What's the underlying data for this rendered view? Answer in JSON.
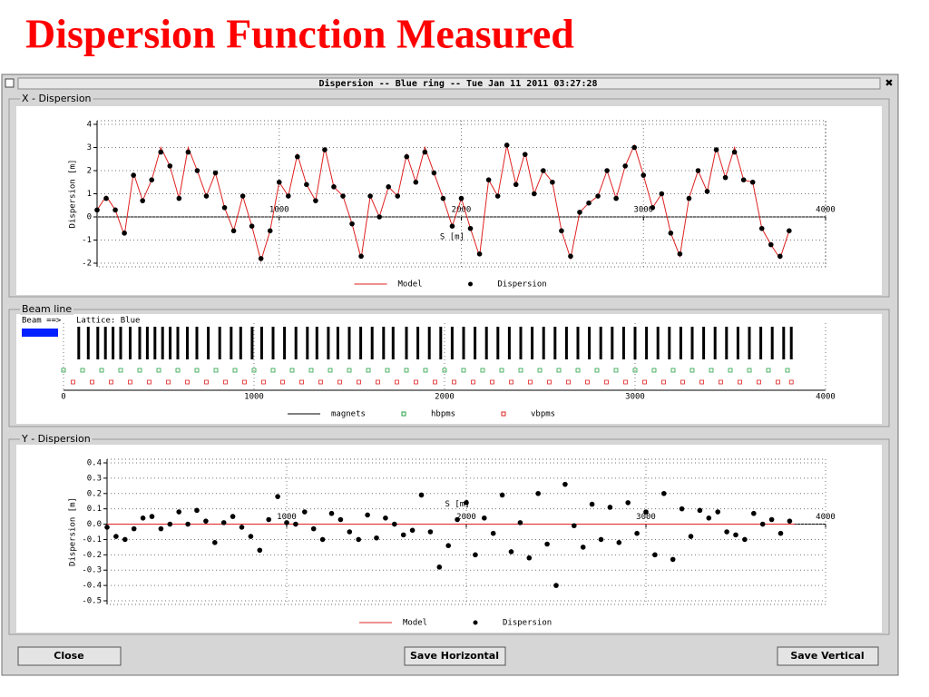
{
  "slide_title": "Dispersion Function Measured",
  "window_title": "Dispersion -- Blue ring -- Tue Jan 11 2011 03:27:28",
  "close_icon": "✖",
  "buttons": [
    "Close",
    "Save Horizontal",
    "Save Vertical"
  ],
  "chart_data": [
    {
      "type": "scatter",
      "panel_label": "X - Dispersion",
      "y_label": "Dispersion [m]",
      "x_label": "S [m]",
      "xlim": [
        0,
        4000
      ],
      "ylim": [
        -2,
        4
      ],
      "xticks": [
        1000,
        2000,
        3000,
        4000
      ],
      "yticks": [
        -2,
        -1,
        0,
        1,
        2,
        3,
        4
      ],
      "grid": true,
      "x": [
        0,
        50,
        100,
        150,
        200,
        250,
        300,
        350,
        400,
        450,
        500,
        550,
        600,
        650,
        700,
        750,
        800,
        850,
        900,
        950,
        1000,
        1050,
        1100,
        1150,
        1200,
        1250,
        1300,
        1350,
        1400,
        1450,
        1500,
        1550,
        1600,
        1650,
        1700,
        1750,
        1800,
        1850,
        1900,
        1950,
        2000,
        2050,
        2100,
        2150,
        2200,
        2250,
        2300,
        2350,
        2400,
        2450,
        2500,
        2550,
        2600,
        2650,
        2700,
        2750,
        2800,
        2850,
        2900,
        2950,
        3000,
        3050,
        3100,
        3150,
        3200,
        3250,
        3300,
        3350,
        3400,
        3450,
        3500,
        3550,
        3600,
        3650,
        3700,
        3750,
        3800
      ],
      "series": [
        {
          "name": "Model",
          "style": "line",
          "color": "#e02020",
          "values": [
            0.3,
            0.9,
            0.3,
            -0.8,
            1.9,
            0.7,
            1.6,
            3.0,
            2.2,
            0.8,
            3.0,
            2.0,
            0.9,
            1.9,
            0.4,
            -0.6,
            0.9,
            -0.4,
            -1.9,
            -0.6,
            1.5,
            0.9,
            2.7,
            1.4,
            0.7,
            3.0,
            1.3,
            0.9,
            -0.3,
            -1.8,
            0.9,
            0.0,
            1.3,
            0.9,
            2.7,
            1.5,
            3.0,
            1.9,
            0.8,
            -0.4,
            0.8,
            -0.5,
            -1.7,
            1.6,
            0.9,
            3.1,
            1.4,
            2.8,
            1.0,
            2.0,
            1.5,
            -0.6,
            -1.8,
            0.2,
            0.6,
            0.9,
            2.0,
            0.8,
            2.2,
            3.1,
            1.8,
            0.4,
            1.0,
            -0.7,
            -1.7,
            0.8,
            2.0,
            1.1,
            3.0,
            1.7,
            3.0,
            1.6,
            1.5,
            -0.5,
            -1.2,
            -1.8,
            -0.6
          ]
        },
        {
          "name": "Dispersion",
          "style": "dots",
          "color": "#000000",
          "values": [
            0.3,
            0.8,
            0.3,
            -0.7,
            1.8,
            0.7,
            1.6,
            2.8,
            2.2,
            0.8,
            2.8,
            2.0,
            0.9,
            1.9,
            0.4,
            -0.6,
            0.9,
            -0.4,
            -1.8,
            -0.6,
            1.5,
            0.9,
            2.6,
            1.4,
            0.7,
            2.9,
            1.3,
            0.9,
            -0.3,
            -1.7,
            0.9,
            0.0,
            1.3,
            0.9,
            2.6,
            1.5,
            2.8,
            1.9,
            0.8,
            -0.4,
            0.8,
            -0.5,
            -1.6,
            1.6,
            0.9,
            3.1,
            1.4,
            2.7,
            1.0,
            2.0,
            1.5,
            -0.6,
            -1.7,
            0.2,
            0.6,
            0.9,
            2.0,
            0.8,
            2.2,
            3.0,
            1.8,
            0.4,
            1.0,
            -0.7,
            -1.6,
            0.8,
            2.0,
            1.1,
            2.9,
            1.7,
            2.8,
            1.6,
            1.5,
            -0.5,
            -1.2,
            -1.7,
            -0.6
          ]
        }
      ]
    },
    {
      "type": "beamline",
      "panel_label": "Beam line",
      "beam_text": "Beam ==>",
      "lattice_text": "Lattice: Blue",
      "xlim": [
        0,
        4000
      ],
      "xticks": [
        0,
        1000,
        2000,
        3000,
        4000
      ],
      "series": [
        {
          "name": "magnets",
          "style": "ticks",
          "color": "#000000",
          "x": [
            80,
            130,
            180,
            220,
            260,
            300,
            350,
            400,
            440,
            480,
            520,
            560,
            600,
            650,
            700,
            760,
            820,
            880,
            930,
            990,
            1040,
            1100,
            1160,
            1220,
            1280,
            1330,
            1390,
            1440,
            1500,
            1560,
            1620,
            1680,
            1730,
            1800,
            1860,
            1920,
            1980,
            2040,
            2100,
            2160,
            2220,
            2280,
            2340,
            2400,
            2460,
            2520,
            2580,
            2640,
            2700,
            2760,
            2820,
            2880,
            2940,
            3000,
            3060,
            3120,
            3180,
            3240,
            3300,
            3360,
            3420,
            3480,
            3540,
            3600,
            3660,
            3720,
            3780,
            3820
          ]
        },
        {
          "name": "hbpms",
          "style": "squares",
          "color": "#20a040",
          "x": [
            0,
            100,
            200,
            300,
            400,
            500,
            600,
            700,
            800,
            900,
            1000,
            1100,
            1200,
            1300,
            1400,
            1500,
            1600,
            1700,
            1800,
            1900,
            2000,
            2100,
            2200,
            2300,
            2400,
            2500,
            2600,
            2700,
            2800,
            2900,
            3000,
            3100,
            3200,
            3300,
            3400,
            3500,
            3600,
            3700,
            3800
          ]
        },
        {
          "name": "vbpms",
          "style": "squares",
          "color": "#e02020",
          "x": [
            50,
            150,
            250,
            350,
            450,
            550,
            650,
            750,
            850,
            950,
            1050,
            1150,
            1250,
            1350,
            1450,
            1550,
            1650,
            1750,
            1850,
            1950,
            2050,
            2150,
            2250,
            2350,
            2450,
            2550,
            2650,
            2750,
            2850,
            2950,
            3050,
            3150,
            3250,
            3350,
            3450,
            3550,
            3650,
            3750,
            3820
          ]
        }
      ]
    },
    {
      "type": "scatter",
      "panel_label": "Y - Dispersion",
      "y_label": "Dispersion [m]",
      "x_label": "S [m]",
      "xlim": [
        0,
        4000
      ],
      "ylim": [
        -0.5,
        0.4
      ],
      "xticks": [
        1000,
        2000,
        3000,
        4000
      ],
      "yticks": [
        -0.5,
        -0.4,
        -0.3,
        -0.2,
        -0.1,
        {
          "value": 0,
          "label": "0.0"
        },
        0.1,
        0.2,
        0.3,
        0.4
      ],
      "grid": true,
      "x": [
        0,
        50,
        100,
        150,
        200,
        250,
        300,
        350,
        400,
        450,
        500,
        550,
        600,
        650,
        700,
        750,
        800,
        850,
        900,
        950,
        1000,
        1050,
        1100,
        1150,
        1200,
        1250,
        1300,
        1350,
        1400,
        1450,
        1500,
        1550,
        1600,
        1650,
        1700,
        1750,
        1800,
        1850,
        1900,
        1950,
        2000,
        2050,
        2100,
        2150,
        2200,
        2250,
        2300,
        2350,
        2400,
        2450,
        2500,
        2550,
        2600,
        2650,
        2700,
        2750,
        2800,
        2850,
        2900,
        2950,
        3000,
        3050,
        3100,
        3150,
        3200,
        3250,
        3300,
        3350,
        3400,
        3450,
        3500,
        3550,
        3600,
        3650,
        3700,
        3750,
        3800
      ],
      "series": [
        {
          "name": "Model",
          "style": "line",
          "color": "#e02020",
          "x": [
            0,
            3830
          ],
          "values": [
            0,
            0
          ]
        },
        {
          "name": "Dispersion",
          "style": "dots",
          "color": "#000000",
          "values": [
            -0.02,
            -0.08,
            -0.1,
            -0.03,
            0.04,
            0.05,
            -0.03,
            0.0,
            0.08,
            0.0,
            0.09,
            0.02,
            -0.12,
            0.01,
            0.05,
            -0.02,
            -0.08,
            -0.17,
            0.03,
            0.18,
            0.01,
            0.0,
            0.08,
            -0.03,
            -0.1,
            0.07,
            0.03,
            -0.05,
            -0.1,
            0.06,
            -0.09,
            0.04,
            0.0,
            -0.07,
            -0.04,
            0.19,
            -0.05,
            -0.28,
            -0.14,
            0.03,
            0.14,
            -0.2,
            0.04,
            -0.06,
            0.19,
            -0.18,
            0.01,
            -0.22,
            0.2,
            -0.13,
            -0.4,
            0.26,
            -0.01,
            -0.15,
            0.13,
            -0.1,
            0.11,
            -0.12,
            0.14,
            -0.06,
            0.08,
            -0.2,
            0.2,
            -0.23,
            0.1,
            -0.08,
            0.09,
            0.04,
            0.08,
            -0.05,
            -0.07,
            -0.1,
            0.07,
            0.0,
            0.03,
            -0.06,
            0.02
          ]
        }
      ]
    }
  ]
}
